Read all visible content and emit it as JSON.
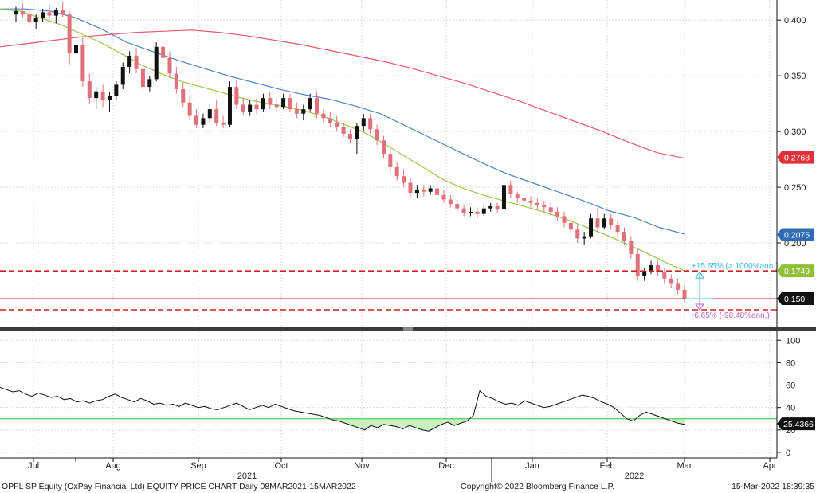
{
  "footer": {
    "left": "OPFL SP Equity (OxPay Financial Ltd) EQUITY PRICE CHART  Daily 08MAR2021-15MAR2022",
    "center": "Copyright© 2022 Bloomberg Finance L.P.",
    "right": "15-Mar-2022 18:39:35"
  },
  "chart_data": [
    {
      "type": "candlestick",
      "panel": "price",
      "ylim": [
        0.125,
        0.418
      ],
      "yticks": [
        "0.400",
        "0.350",
        "0.300",
        "0.250",
        "0.200"
      ],
      "x_labels": [
        "Jul",
        "Aug",
        "Sep",
        "Oct",
        "Nov",
        "Dec",
        "Jan",
        "Feb",
        "Mar",
        "Apr"
      ],
      "year_labels": [
        "2021",
        "2022"
      ],
      "grid": true,
      "colors": {
        "up": "#111111",
        "down": "#e0707a"
      },
      "candles": [
        [
          0.405,
          0.412,
          0.398,
          0.408
        ],
        [
          0.408,
          0.415,
          0.402,
          0.405
        ],
        [
          0.405,
          0.41,
          0.395,
          0.398
        ],
        [
          0.398,
          0.405,
          0.392,
          0.402
        ],
        [
          0.402,
          0.41,
          0.398,
          0.407
        ],
        [
          0.407,
          0.414,
          0.4,
          0.404
        ],
        [
          0.404,
          0.411,
          0.397,
          0.409
        ],
        [
          0.409,
          0.416,
          0.403,
          0.405
        ],
        [
          0.405,
          0.408,
          0.36,
          0.37
        ],
        [
          0.37,
          0.382,
          0.355,
          0.378
        ],
        [
          0.378,
          0.384,
          0.34,
          0.345
        ],
        [
          0.345,
          0.352,
          0.325,
          0.33
        ],
        [
          0.33,
          0.34,
          0.32,
          0.336
        ],
        [
          0.336,
          0.342,
          0.322,
          0.328
        ],
        [
          0.328,
          0.335,
          0.318,
          0.332
        ],
        [
          0.332,
          0.345,
          0.328,
          0.342
        ],
        [
          0.342,
          0.362,
          0.338,
          0.358
        ],
        [
          0.358,
          0.372,
          0.352,
          0.368
        ],
        [
          0.368,
          0.375,
          0.352,
          0.356
        ],
        [
          0.356,
          0.362,
          0.335,
          0.34
        ],
        [
          0.34,
          0.35,
          0.336,
          0.347
        ],
        [
          0.347,
          0.38,
          0.345,
          0.376
        ],
        [
          0.376,
          0.385,
          0.36,
          0.366
        ],
        [
          0.366,
          0.372,
          0.348,
          0.352
        ],
        [
          0.352,
          0.358,
          0.334,
          0.338
        ],
        [
          0.338,
          0.344,
          0.322,
          0.326
        ],
        [
          0.326,
          0.332,
          0.31,
          0.314
        ],
        [
          0.314,
          0.32,
          0.303,
          0.306
        ],
        [
          0.306,
          0.316,
          0.303,
          0.312
        ],
        [
          0.312,
          0.325,
          0.308,
          0.32
        ],
        [
          0.32,
          0.328,
          0.305,
          0.308
        ],
        [
          0.308,
          0.314,
          0.303,
          0.306
        ],
        [
          0.306,
          0.345,
          0.304,
          0.34
        ],
        [
          0.34,
          0.346,
          0.32,
          0.324
        ],
        [
          0.324,
          0.33,
          0.315,
          0.318
        ],
        [
          0.318,
          0.328,
          0.314,
          0.324
        ],
        [
          0.324,
          0.33,
          0.316,
          0.32
        ],
        [
          0.32,
          0.334,
          0.318,
          0.33
        ],
        [
          0.33,
          0.336,
          0.32,
          0.324
        ],
        [
          0.324,
          0.33,
          0.318,
          0.322
        ],
        [
          0.322,
          0.334,
          0.32,
          0.33
        ],
        [
          0.33,
          0.334,
          0.318,
          0.32
        ],
        [
          0.32,
          0.326,
          0.312,
          0.316
        ],
        [
          0.316,
          0.324,
          0.31,
          0.32
        ],
        [
          0.32,
          0.334,
          0.318,
          0.33
        ],
        [
          0.33,
          0.336,
          0.312,
          0.316
        ],
        [
          0.316,
          0.32,
          0.308,
          0.312
        ],
        [
          0.312,
          0.318,
          0.304,
          0.308
        ],
        [
          0.308,
          0.314,
          0.3,
          0.304
        ],
        [
          0.304,
          0.308,
          0.295,
          0.298
        ],
        [
          0.298,
          0.302,
          0.29,
          0.293
        ],
        [
          0.293,
          0.308,
          0.28,
          0.305
        ],
        [
          0.305,
          0.316,
          0.3,
          0.312
        ],
        [
          0.312,
          0.316,
          0.298,
          0.302
        ],
        [
          0.302,
          0.306,
          0.288,
          0.292
        ],
        [
          0.292,
          0.296,
          0.276,
          0.28
        ],
        [
          0.28,
          0.284,
          0.264,
          0.268
        ],
        [
          0.268,
          0.272,
          0.256,
          0.26
        ],
        [
          0.26,
          0.266,
          0.25,
          0.254
        ],
        [
          0.254,
          0.258,
          0.24,
          0.245
        ],
        [
          0.245,
          0.252,
          0.24,
          0.248
        ],
        [
          0.248,
          0.252,
          0.242,
          0.246
        ],
        [
          0.246,
          0.252,
          0.243,
          0.249
        ],
        [
          0.249,
          0.252,
          0.24,
          0.243
        ],
        [
          0.243,
          0.248,
          0.236,
          0.239
        ],
        [
          0.239,
          0.243,
          0.232,
          0.235
        ],
        [
          0.235,
          0.239,
          0.228,
          0.231
        ],
        [
          0.231,
          0.234,
          0.224,
          0.227
        ],
        [
          0.227,
          0.232,
          0.224,
          0.228
        ],
        [
          0.228,
          0.232,
          0.222,
          0.226
        ],
        [
          0.226,
          0.234,
          0.224,
          0.231
        ],
        [
          0.231,
          0.236,
          0.228,
          0.233
        ],
        [
          0.233,
          0.236,
          0.227,
          0.23
        ],
        [
          0.23,
          0.258,
          0.228,
          0.252
        ],
        [
          0.252,
          0.256,
          0.24,
          0.244
        ],
        [
          0.244,
          0.246,
          0.236,
          0.24
        ],
        [
          0.24,
          0.244,
          0.234,
          0.238
        ],
        [
          0.238,
          0.242,
          0.232,
          0.236
        ],
        [
          0.236,
          0.24,
          0.23,
          0.234
        ],
        [
          0.234,
          0.238,
          0.228,
          0.232
        ],
        [
          0.232,
          0.236,
          0.224,
          0.228
        ],
        [
          0.228,
          0.232,
          0.22,
          0.224
        ],
        [
          0.224,
          0.228,
          0.214,
          0.218
        ],
        [
          0.218,
          0.222,
          0.208,
          0.212
        ],
        [
          0.212,
          0.216,
          0.2,
          0.204
        ],
        [
          0.204,
          0.21,
          0.198,
          0.206
        ],
        [
          0.206,
          0.226,
          0.204,
          0.222
        ],
        [
          0.222,
          0.23,
          0.21,
          0.214
        ],
        [
          0.214,
          0.226,
          0.212,
          0.222
        ],
        [
          0.222,
          0.226,
          0.212,
          0.216
        ],
        [
          0.216,
          0.22,
          0.206,
          0.21
        ],
        [
          0.21,
          0.214,
          0.198,
          0.202
        ],
        [
          0.202,
          0.206,
          0.186,
          0.19
        ],
        [
          0.19,
          0.194,
          0.166,
          0.17
        ],
        [
          0.17,
          0.178,
          0.166,
          0.175
        ],
        [
          0.175,
          0.184,
          0.172,
          0.18
        ],
        [
          0.18,
          0.184,
          0.17,
          0.174
        ],
        [
          0.174,
          0.178,
          0.164,
          0.168
        ],
        [
          0.168,
          0.172,
          0.16,
          0.164
        ],
        [
          0.164,
          0.168,
          0.154,
          0.158
        ],
        [
          0.158,
          0.162,
          0.146,
          0.15
        ]
      ],
      "moving_averages": [
        {
          "color": "#e85a6a",
          "values": [
            0.376,
            0.379,
            0.382,
            0.385,
            0.387,
            0.389,
            0.39,
            0.391,
            0.389,
            0.386,
            0.382,
            0.378,
            0.373,
            0.368,
            0.363,
            0.357,
            0.35,
            0.343,
            0.335,
            0.327,
            0.318,
            0.309,
            0.3,
            0.29,
            0.281,
            0.276
          ]
        },
        {
          "color": "#4e86c4",
          "values": [
            0.41,
            0.41,
            0.408,
            0.402,
            0.392,
            0.38,
            0.372,
            0.364,
            0.357,
            0.35,
            0.344,
            0.338,
            0.333,
            0.329,
            0.323,
            0.316,
            0.305,
            0.294,
            0.283,
            0.272,
            0.262,
            0.254,
            0.246,
            0.238,
            0.229,
            0.223,
            0.214,
            0.208
          ]
        },
        {
          "color": "#9cc64a",
          "values": [
            0.41,
            0.408,
            0.402,
            0.396,
            0.388,
            0.38,
            0.37,
            0.36,
            0.352,
            0.345,
            0.34,
            0.335,
            0.33,
            0.326,
            0.323,
            0.319,
            0.314,
            0.307,
            0.3,
            0.29,
            0.279,
            0.268,
            0.257,
            0.249,
            0.243,
            0.238,
            0.233,
            0.228,
            0.222,
            0.215,
            0.208,
            0.2,
            0.192,
            0.183,
            0.175
          ]
        }
      ],
      "levels": [
        {
          "value": 0.1749,
          "style": "dashed",
          "color": "#d02020"
        },
        {
          "value": 0.15,
          "style": "solid",
          "color": "#d02020"
        },
        {
          "value": 0.14,
          "style": "dashed",
          "color": "#d02020"
        }
      ],
      "last_values": [
        {
          "label": "0.2768",
          "value": 0.2768,
          "color": "#e0303a"
        },
        {
          "label": "0.2075",
          "value": 0.2075,
          "color": "#2e6db5"
        },
        {
          "label": "0.1749",
          "value": 0.1749,
          "color": "#8fc036"
        },
        {
          "label": "0.150",
          "value": 0.15,
          "color": "#111111"
        }
      ],
      "annotations": [
        {
          "text": "+15.65% (> 1000%ann.)",
          "color": "#3ab6e0",
          "value": 0.1749
        },
        {
          "text": "-6.65% (-98.48%ann.)",
          "color": "#c060c0",
          "value": 0.14
        }
      ]
    },
    {
      "type": "line",
      "panel": "rsi",
      "ylim": [
        -5,
        108
      ],
      "yticks": [
        "100",
        "80",
        "60",
        "40",
        "20",
        "0"
      ],
      "last_value": {
        "label": "25.4366",
        "value": 25.4366
      },
      "overbought": 70,
      "oversold": 30,
      "colors": {
        "line": "#111111",
        "overbought": "#d03030",
        "oversold": "#55cc55",
        "fill": "#c8f0c0"
      },
      "values": [
        58,
        56,
        54,
        55,
        52,
        50,
        53,
        51,
        49,
        50,
        47,
        48,
        45,
        46,
        44,
        46,
        47,
        50,
        52,
        49,
        47,
        45,
        48,
        46,
        43,
        44,
        42,
        43,
        41,
        44,
        42,
        40,
        41,
        39,
        38,
        40,
        42,
        44,
        41,
        38,
        40,
        42,
        40,
        43,
        41,
        39,
        37,
        36,
        35,
        34,
        33,
        31,
        29,
        28,
        26,
        24,
        22,
        20,
        24,
        22,
        25,
        24,
        23,
        21,
        24,
        22,
        20,
        19,
        22,
        25,
        27,
        24,
        26,
        28,
        33,
        55,
        50,
        48,
        45,
        43,
        44,
        42,
        46,
        44,
        42,
        40,
        41,
        43,
        45,
        47,
        49,
        51,
        50,
        48,
        45,
        43,
        40,
        35,
        30,
        28,
        33,
        36,
        34,
        32,
        30,
        28,
        26,
        25
      ]
    }
  ]
}
